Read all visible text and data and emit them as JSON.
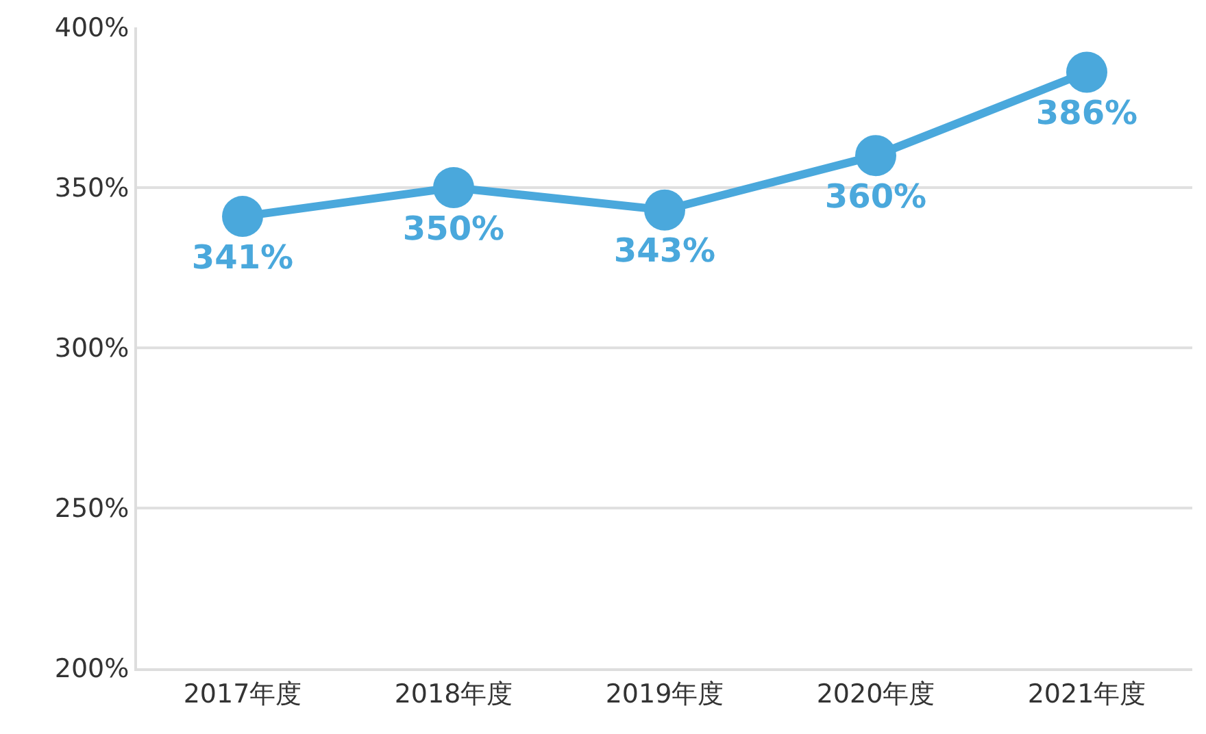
{
  "chart_data": {
    "type": "line",
    "categories": [
      "2017年度",
      "2018年度",
      "2019年度",
      "2020年度",
      "2021年度"
    ],
    "series": [
      {
        "color": "#4aa8dc",
        "values": [
          341,
          350,
          343,
          360,
          386
        ],
        "value_labels": [
          "341%",
          "350%",
          "343%",
          "360%",
          "386%"
        ]
      }
    ],
    "ylim": [
      200,
      400
    ],
    "yticks": [
      {
        "value": 200,
        "label": "200%"
      },
      {
        "value": 250,
        "label": "250%"
      },
      {
        "value": 300,
        "label": "300%"
      },
      {
        "value": 350,
        "label": "350%"
      },
      {
        "value": 400,
        "label": "400%"
      }
    ],
    "grid": "y",
    "marker": "circle",
    "line_style": "solid"
  }
}
